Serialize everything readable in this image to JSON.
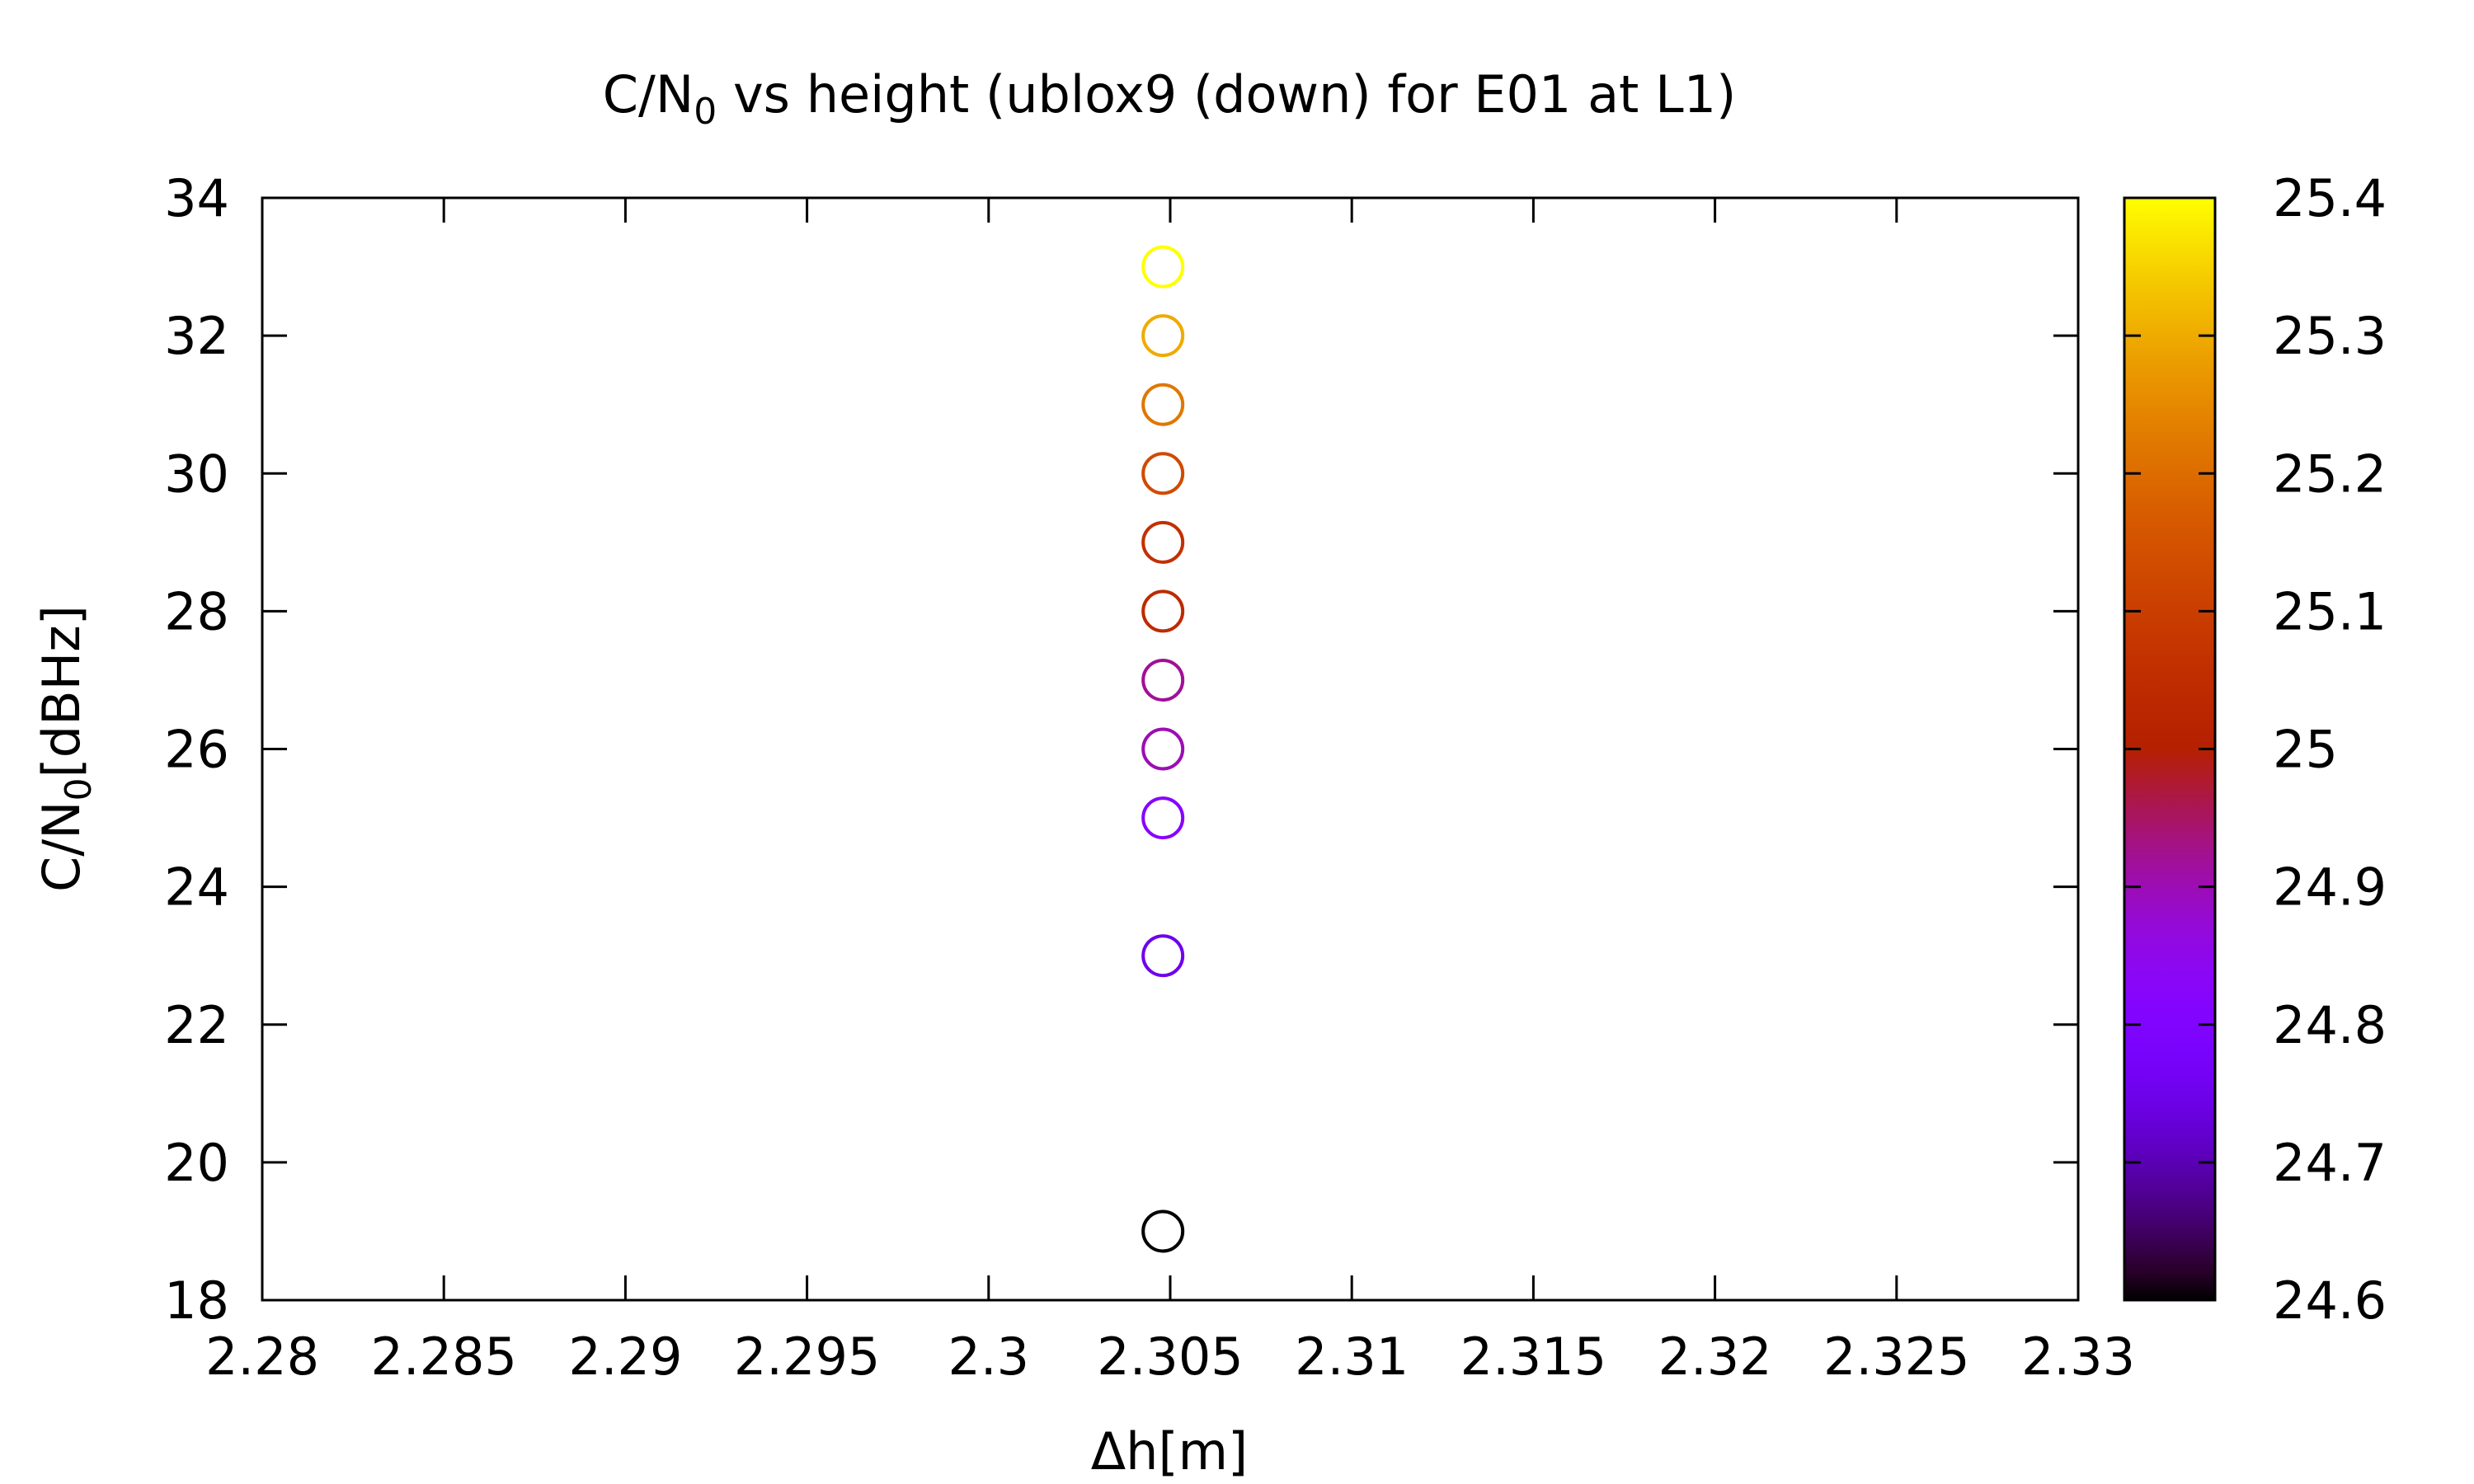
{
  "chart_data": {
    "type": "scatter",
    "title": "C/N₀ vs height (ublox9 (down) for E01 at L1)",
    "title_main": "C/N",
    "title_sub": "0",
    "title_rest": " vs height (ublox9 (down) for E01 at L1)",
    "xlabel": "Δh[m]",
    "ylabel": "C/N₀[dBHz]",
    "ylabel_main": "C/N",
    "ylabel_sub": "0",
    "ylabel_rest": "[dBHz]",
    "xlim": [
      2.28,
      2.33
    ],
    "ylim": [
      18,
      34
    ],
    "xticks": [
      2.28,
      2.285,
      2.29,
      2.295,
      2.3,
      2.305,
      2.31,
      2.315,
      2.32,
      2.325,
      2.33
    ],
    "xtick_labels": [
      "2.28",
      "2.285",
      "2.29",
      "2.295",
      "2.3",
      "2.305",
      "2.31",
      "2.315",
      "2.32",
      "2.325",
      "2.33"
    ],
    "yticks": [
      18,
      20,
      22,
      24,
      26,
      28,
      30,
      32,
      34
    ],
    "ytick_labels": [
      "18",
      "20",
      "22",
      "24",
      "26",
      "28",
      "30",
      "32",
      "34"
    ],
    "colorbar": {
      "range": [
        24.6,
        25.4
      ],
      "ticks": [
        24.6,
        24.7,
        24.8,
        24.9,
        25,
        25.1,
        25.2,
        25.3,
        25.4
      ],
      "tick_labels": [
        "24.6",
        "24.7",
        "24.8",
        "24.9",
        "25",
        "25.1",
        "25.2",
        "25.3",
        "25.4"
      ],
      "palette": "gnuplot-default (black-purple-red-orange-yellow)"
    },
    "grid": false,
    "marker": "open-circle",
    "points": [
      {
        "x": 2.3048,
        "y": 19,
        "c": 24.6
      },
      {
        "x": 2.3048,
        "y": 23,
        "c": 24.75
      },
      {
        "x": 2.3048,
        "y": 25,
        "c": 24.82
      },
      {
        "x": 2.3048,
        "y": 26,
        "c": 24.9
      },
      {
        "x": 2.3048,
        "y": 27,
        "c": 24.92
      },
      {
        "x": 2.3048,
        "y": 28,
        "c": 25.04
      },
      {
        "x": 2.3048,
        "y": 29,
        "c": 25.06
      },
      {
        "x": 2.3048,
        "y": 30,
        "c": 25.13
      },
      {
        "x": 2.3048,
        "y": 31,
        "c": 25.22
      },
      {
        "x": 2.3048,
        "y": 32,
        "c": 25.3
      },
      {
        "x": 2.3048,
        "y": 33,
        "c": 25.4
      }
    ]
  }
}
